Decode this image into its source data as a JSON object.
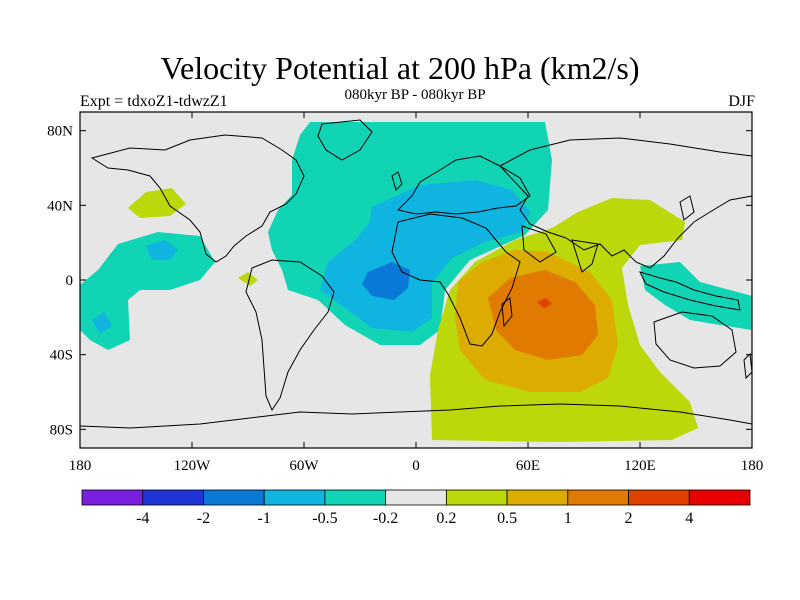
{
  "title": "Velocity Potential at 200 hPa (km2/s)",
  "subtitle": "080kyr BP - 080kyr BP",
  "left_label": "Expt = tdxoZ1-tdwzZ1",
  "right_label": "DJF",
  "map": {
    "lon_range": [
      -180,
      180
    ],
    "lat_range": [
      -90,
      90
    ],
    "background_color": "#e6e6e6",
    "lon_ticks": [
      {
        "value": -180,
        "label": "180"
      },
      {
        "value": -120,
        "label": "120W"
      },
      {
        "value": -60,
        "label": "60W"
      },
      {
        "value": 0,
        "label": "0"
      },
      {
        "value": 60,
        "label": "60E"
      },
      {
        "value": 120,
        "label": "120E"
      },
      {
        "value": 180,
        "label": "180"
      }
    ],
    "lat_ticks": [
      {
        "value": 80,
        "label": "80N"
      },
      {
        "value": 40,
        "label": "40N"
      },
      {
        "value": 0,
        "label": "0"
      },
      {
        "value": -40,
        "label": "40S"
      },
      {
        "value": -80,
        "label": "80S"
      }
    ]
  },
  "colorbar": {
    "colors": [
      "#7a1fe0",
      "#1f36d6",
      "#0a78d6",
      "#0fb4e0",
      "#10d4b4",
      "#e6e6e6",
      "#bcd80a",
      "#dcac00",
      "#e07a00",
      "#e04000",
      "#e80000"
    ],
    "labels": [
      "-4",
      "-2",
      "-1",
      "-0.5",
      "-0.2",
      "0.2",
      "0.5",
      "1",
      "2",
      "4"
    ]
  }
}
